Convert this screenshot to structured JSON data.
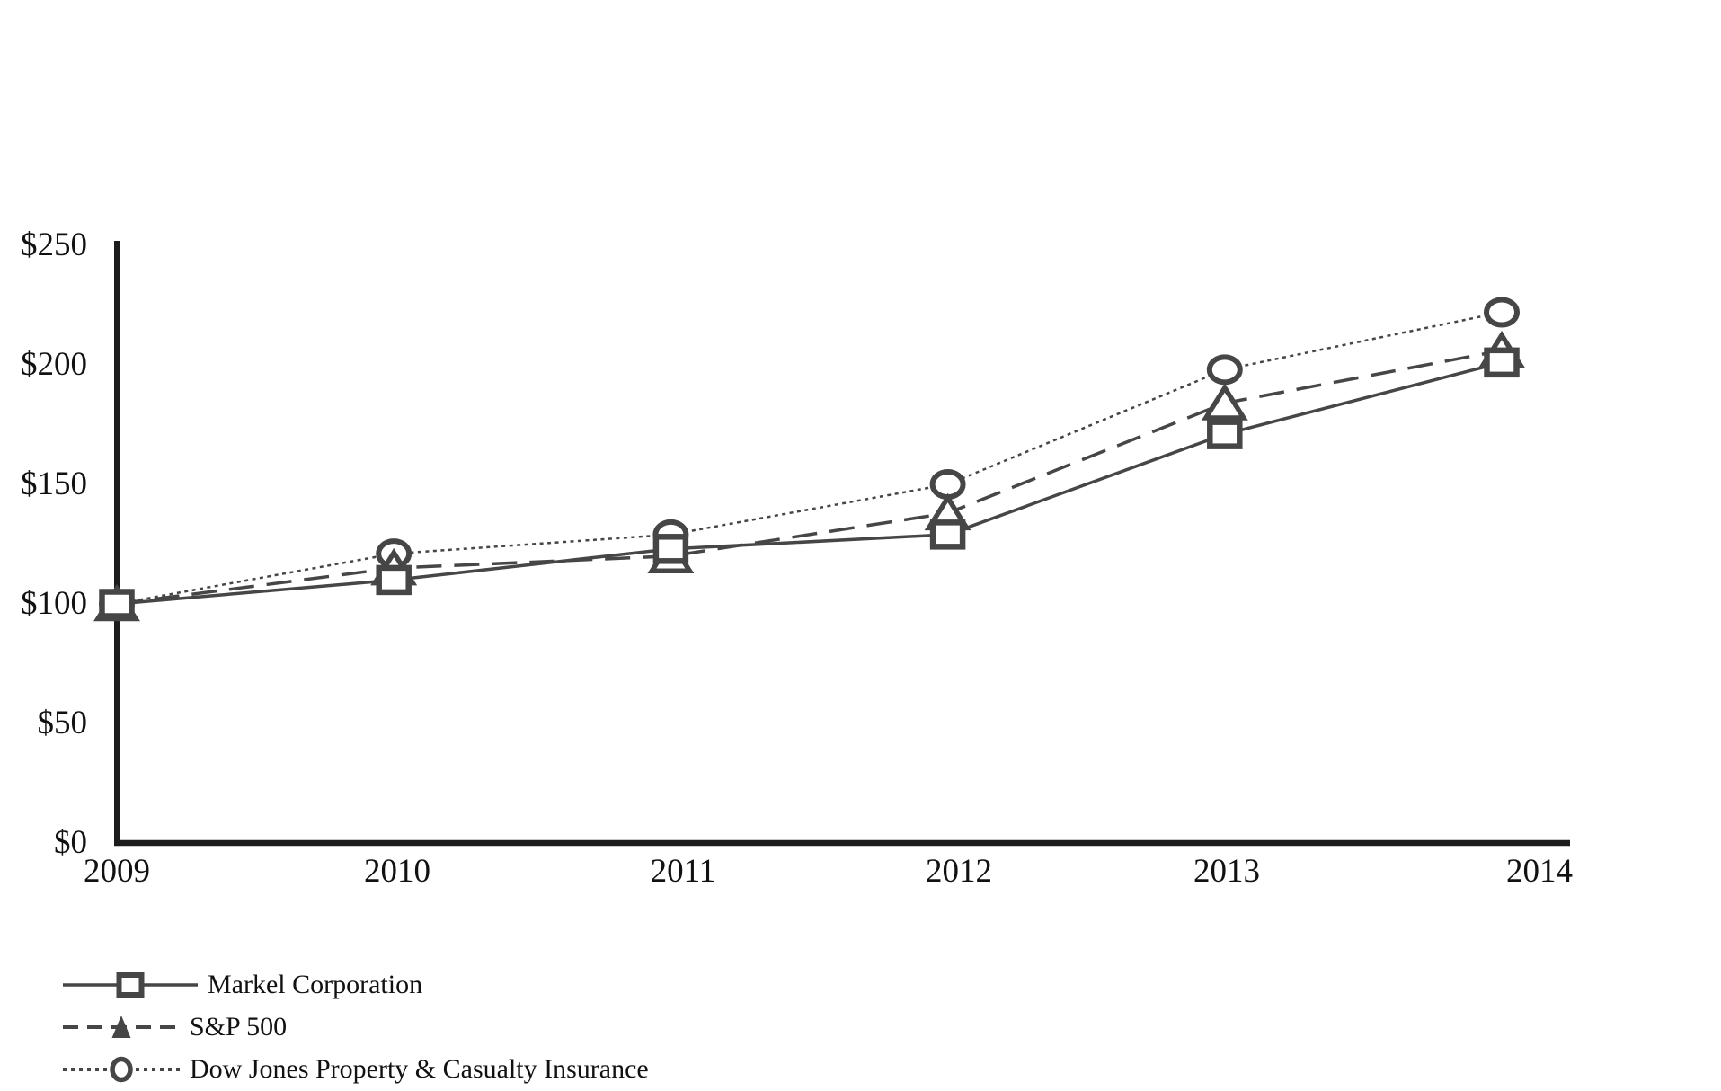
{
  "page": {
    "background": "#ffffff",
    "description": "Five-year cumulative total shareholder return comparison line chart"
  },
  "chart_data": {
    "type": "line",
    "title": "",
    "xlabel": "",
    "ylabel": "",
    "grid": false,
    "legend_position": "bottom-left",
    "categories": [
      "2009",
      "2010",
      "2011",
      "2012",
      "2013",
      "2014"
    ],
    "ylim": [
      0,
      250
    ],
    "y_ticks": [
      {
        "value": 0,
        "label": "$0"
      },
      {
        "value": 50,
        "label": "$50"
      },
      {
        "value": 100,
        "label": "$100"
      },
      {
        "value": 150,
        "label": "$150"
      },
      {
        "value": 200,
        "label": "$200"
      },
      {
        "value": 250,
        "label": "$250"
      }
    ],
    "series": [
      {
        "name": "Markel Corporation",
        "marker": "square",
        "line_style": "solid",
        "values": [
          100,
          110,
          123,
          129,
          171,
          201
        ]
      },
      {
        "name": "S&P 500",
        "marker": "triangle",
        "line_style": "dashed",
        "values": [
          100,
          115,
          120,
          138,
          184,
          206
        ]
      },
      {
        "name": "Dow Jones Property & Casualty Insurance",
        "marker": "circle",
        "line_style": "dotted",
        "values": [
          100,
          121,
          129,
          150,
          198,
          222
        ]
      }
    ],
    "colors": {
      "series_stroke": "#464646",
      "marker_fill": "#ffffff",
      "axis": "#1c1c1c",
      "text": "#111111"
    }
  }
}
